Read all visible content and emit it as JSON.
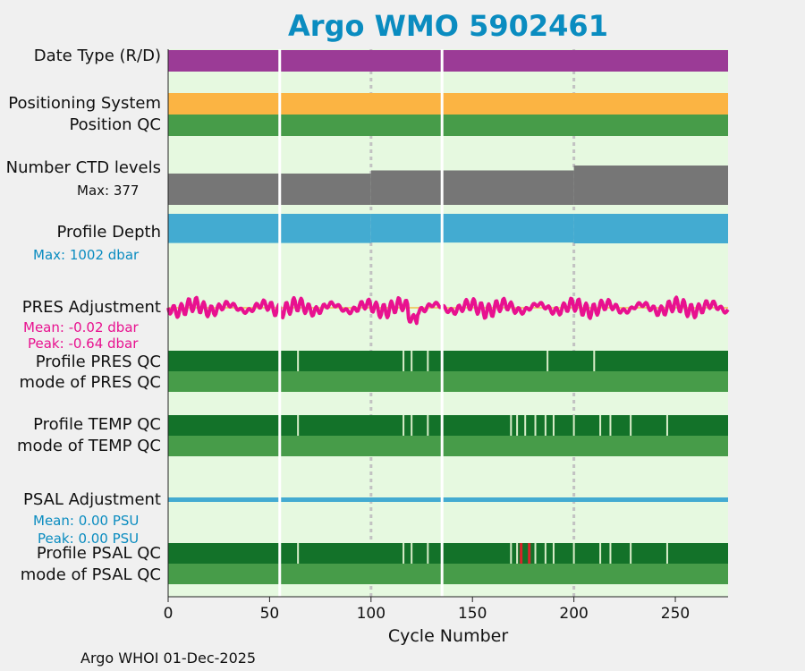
{
  "title": "Argo WMO 5902461",
  "footer": "Argo WHOI 01-Dec-2025",
  "colors": {
    "plot_bg": "#e6f9e0",
    "date_type": "#9b3b96",
    "positioning": "#fbb443",
    "qc_mode": "#479c49",
    "qc_profile": "#137229",
    "ctd": "#767676",
    "depth": "#43abd1",
    "pres_adj": "#e8118f",
    "psal_adj": "#43abd1",
    "bad_flag": "#d9242a",
    "title": "#0a8cc0"
  },
  "labels": {
    "date_type": "Date Type (R/D)",
    "positioning": "Positioning System",
    "position_qc": "Position QC",
    "ctd_levels": "Number CTD levels",
    "ctd_max": "Max: 377",
    "profile_depth": "Profile Depth",
    "depth_max": "Max: 1002 dbar",
    "pres_adj": "PRES Adjustment",
    "pres_mean": "Mean: -0.02 dbar",
    "pres_peak": "Peak: -0.64 dbar",
    "pres_qc": "Profile PRES QC",
    "pres_mode": "mode of PRES QC",
    "temp_qc": "Profile TEMP QC",
    "temp_mode": "mode of TEMP QC",
    "psal_adj": "PSAL Adjustment",
    "psal_mean": "Mean: 0.00 PSU",
    "psal_peak": "Peak: 0.00 PSU",
    "psal_qc": "Profile PSAL QC",
    "psal_mode": "mode of PSAL QC"
  },
  "chart_data": {
    "type": "bar",
    "xlabel": "Cycle Number",
    "xlim": [
      0,
      276
    ],
    "xticks": [
      0,
      50,
      100,
      150,
      200,
      250
    ],
    "grid_x": [
      100,
      200
    ],
    "missing_cycles": [
      55,
      135
    ],
    "ctd_levels": {
      "max": 377,
      "segments": [
        [
          0,
          100,
          300
        ],
        [
          100,
          200,
          330
        ],
        [
          200,
          276,
          377
        ]
      ]
    },
    "profile_depth": {
      "max_dbar": 1002,
      "segments": [
        [
          0,
          100,
          990
        ],
        [
          100,
          200,
          975
        ],
        [
          200,
          276,
          1002
        ]
      ]
    },
    "pres_adjustment": {
      "mean_dbar": -0.02,
      "peak_dbar": -0.64
    },
    "psal_adjustment": {
      "mean_psu": 0.0,
      "peak_psu": 0.0
    },
    "pres_qc_marks": [
      64,
      116,
      120,
      128,
      187,
      210
    ],
    "temp_qc_marks": [
      64,
      116,
      120,
      128,
      169,
      172,
      176,
      181,
      186,
      190,
      200,
      213,
      218,
      228,
      246
    ],
    "psal_qc_marks": [
      64,
      116,
      120,
      128,
      169,
      172,
      181,
      186,
      190,
      200,
      213,
      218,
      228,
      246
    ],
    "psal_bad_cycles": [
      174,
      178
    ]
  }
}
